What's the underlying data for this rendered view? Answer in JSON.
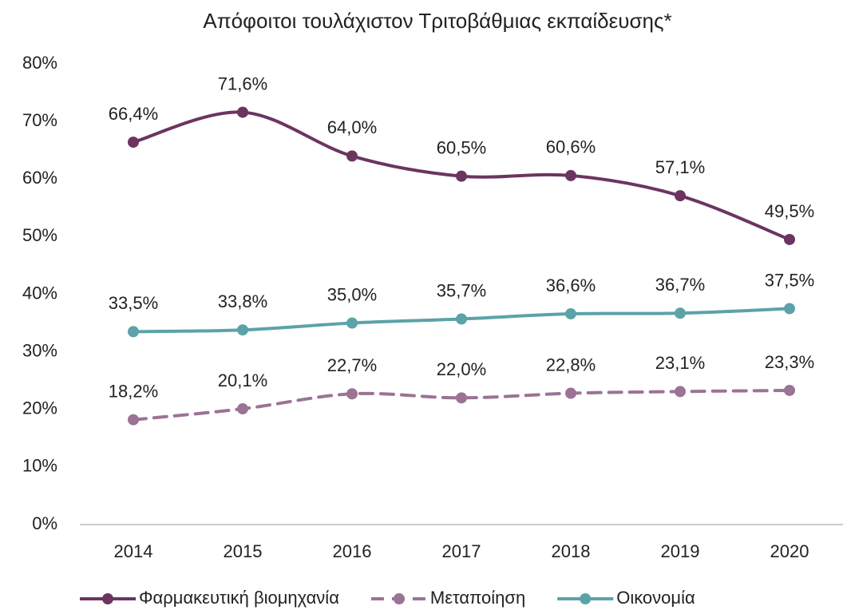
{
  "chart_data": {
    "type": "line",
    "title": "Απόφοιτοι τουλάχιστον Τριτοβάθμιας εκπαίδευσης*",
    "categories": [
      "2014",
      "2015",
      "2016",
      "2017",
      "2018",
      "2019",
      "2020"
    ],
    "series": [
      {
        "name": "Φαρμακευτική βιομηχανία",
        "color": "#6b3560",
        "dashed": false,
        "values": [
          66.4,
          71.6,
          64.0,
          60.5,
          60.6,
          57.1,
          49.5
        ],
        "value_labels": [
          "66,4%",
          "71,6%",
          "64,0%",
          "60,5%",
          "60,6%",
          "57,1%",
          "49,5%"
        ]
      },
      {
        "name": "Μεταποίηση",
        "color": "#9b7395",
        "dashed": true,
        "values": [
          18.2,
          20.1,
          22.7,
          22.0,
          22.8,
          23.1,
          23.3
        ],
        "value_labels": [
          "18,2%",
          "20,1%",
          "22,7%",
          "22,0%",
          "22,8%",
          "23,1%",
          "23,3%"
        ]
      },
      {
        "name": "Οικονομία",
        "color": "#5ba3a8",
        "dashed": false,
        "values": [
          33.5,
          33.8,
          35.0,
          35.7,
          36.6,
          36.7,
          37.5
        ],
        "value_labels": [
          "33,5%",
          "33,8%",
          "35,0%",
          "35,7%",
          "36,6%",
          "36,7%",
          "37,5%"
        ]
      }
    ],
    "ylim": [
      0,
      80
    ],
    "yticks": [
      {
        "value": 0,
        "label": "0%"
      },
      {
        "value": 10,
        "label": "10%"
      },
      {
        "value": 20,
        "label": "20%"
      },
      {
        "value": 30,
        "label": "30%"
      },
      {
        "value": 40,
        "label": "40%"
      },
      {
        "value": 50,
        "label": "50%"
      },
      {
        "value": 60,
        "label": "60%"
      },
      {
        "value": 70,
        "label": "70%"
      },
      {
        "value": 80,
        "label": "80%"
      }
    ],
    "grid": false,
    "legend": "bottom"
  }
}
